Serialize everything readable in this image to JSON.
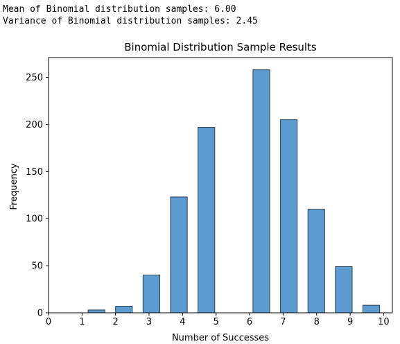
{
  "console": {
    "line1": "Mean of Binomial distribution samples: 6.00",
    "line2": "Variance of Binomial distribution samples: 2.45"
  },
  "chart_data": {
    "type": "bar",
    "title": "Binomial Distribution Sample Results",
    "xlabel": "Number of Successes",
    "ylabel": "Frequency",
    "xlim": [
      0,
      10.26
    ],
    "ylim": [
      0,
      271
    ],
    "xticks": [
      0,
      1,
      2,
      3,
      4,
      5,
      6,
      7,
      8,
      9,
      10
    ],
    "yticks": [
      0,
      50,
      100,
      150,
      200,
      250
    ],
    "bars": [
      {
        "x_start": 1.18,
        "x_end": 1.68,
        "value": 3
      },
      {
        "x_start": 2.0,
        "x_end": 2.5,
        "value": 7
      },
      {
        "x_start": 2.82,
        "x_end": 3.32,
        "value": 40
      },
      {
        "x_start": 3.64,
        "x_end": 4.14,
        "value": 123
      },
      {
        "x_start": 4.46,
        "x_end": 4.96,
        "value": 197
      },
      {
        "x_start": 5.28,
        "x_end": 5.78,
        "value": 0
      },
      {
        "x_start": 6.1,
        "x_end": 6.6,
        "value": 258
      },
      {
        "x_start": 6.92,
        "x_end": 7.42,
        "value": 205
      },
      {
        "x_start": 7.74,
        "x_end": 8.24,
        "value": 110
      },
      {
        "x_start": 8.56,
        "x_end": 9.06,
        "value": 49
      },
      {
        "x_start": 9.38,
        "x_end": 9.88,
        "value": 8
      }
    ],
    "grid": false,
    "colors": {
      "bar_fill": "#5b9bcf",
      "bar_edge": "#2c3e50"
    }
  }
}
